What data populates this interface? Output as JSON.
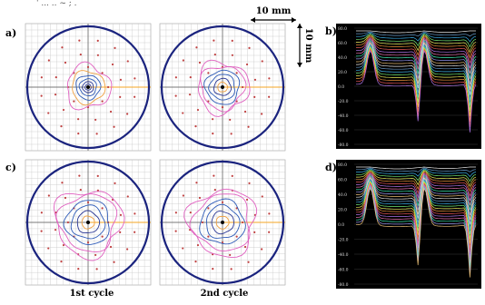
{
  "figure": {
    "top_cropped_text": "' ...  ..  ~   ;  .",
    "scale_bar": {
      "horizontal_label": "10 mm",
      "vertical_label": "10 mm"
    },
    "panel_labels": {
      "a": "a)",
      "b": "b)",
      "c": "c)",
      "d": "d)"
    },
    "cycle_labels": {
      "first": "1st cycle",
      "second": "2nd cycle"
    },
    "graph_ticks": {
      "b": [
        "80.0",
        "60.0",
        "40.0",
        "20.0",
        "0.0",
        "-20.0",
        "-40.0",
        "-60.0",
        "-80.0"
      ],
      "d": [
        "80.0",
        "60.0",
        "40.0",
        "20.0",
        "0.0",
        "-20.0",
        "-40.0",
        "-60.0",
        "-80.0"
      ]
    },
    "colors": {
      "outer_ring": "#1a237e",
      "contour_blue": "#2e5bb8",
      "contour_dark": "#283593",
      "contour_pink": "#e060c0",
      "contour_orange": "#f0a040",
      "axis_orange": "#f5a623",
      "grid": "#c8c8c8",
      "graph_bg": "#000000"
    }
  }
}
